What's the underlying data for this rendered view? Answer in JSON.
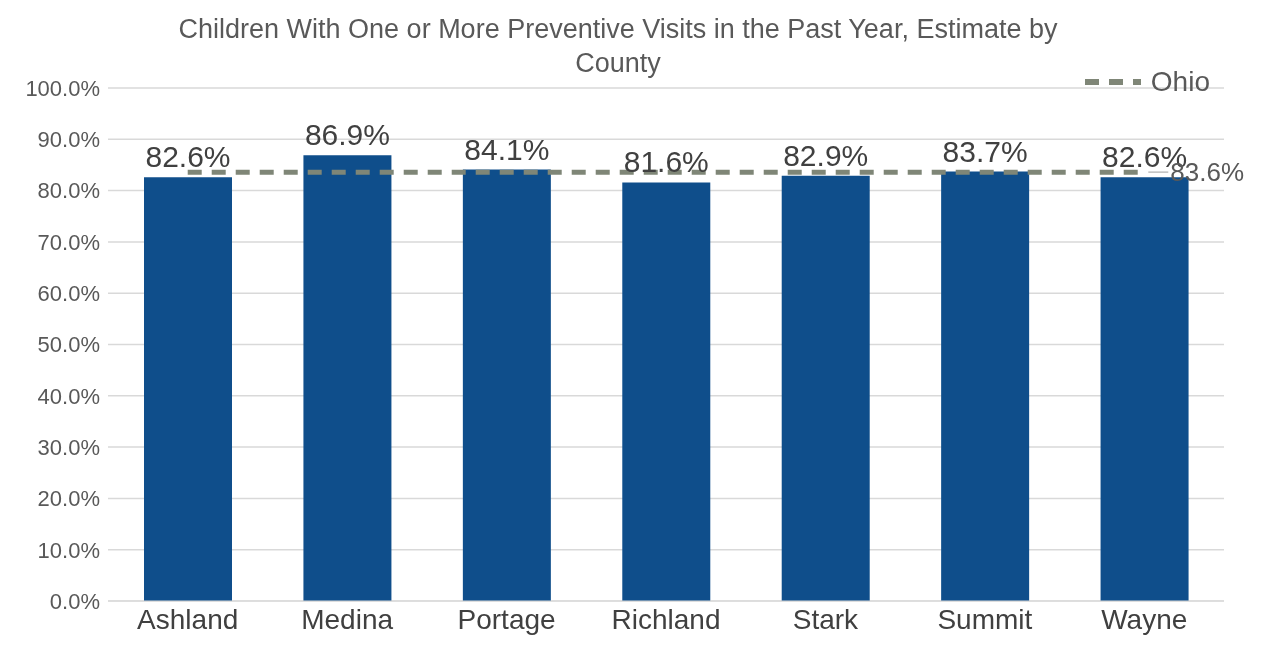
{
  "chart_data": {
    "type": "bar",
    "title": "Children With One or More Preventive Visits in the Past Year, Estimate by County",
    "categories": [
      "Ashland",
      "Medina",
      "Portage",
      "Richland",
      "Stark",
      "Summit",
      "Wayne"
    ],
    "series": [
      {
        "color": "#0f4e8b",
        "values": [
          82.6,
          86.9,
          84.1,
          81.6,
          82.9,
          83.7,
          82.6
        ],
        "value_labels": [
          "82.6%",
          "86.9%",
          "84.1%",
          "81.6%",
          "82.9%",
          "83.7%",
          "82.6%"
        ]
      },
      {
        "type": "line",
        "name": "Ohio",
        "color": "#7f8677",
        "line_style": "dashed",
        "values": [
          83.6,
          83.6,
          83.6,
          83.6,
          83.6,
          83.6,
          83.6
        ],
        "value_labels": [
          null,
          null,
          null,
          null,
          null,
          null,
          "83.6%"
        ]
      }
    ],
    "ylim": [
      0,
      100
    ],
    "yticks": [
      {
        "value": 0,
        "label": "0.0%"
      },
      {
        "value": 10,
        "label": "10.0%"
      },
      {
        "value": 20,
        "label": "20.0%"
      },
      {
        "value": 30,
        "label": "30.0%"
      },
      {
        "value": 40,
        "label": "40.0%"
      },
      {
        "value": 50,
        "label": "50.0%"
      },
      {
        "value": 60,
        "label": "60.0%"
      },
      {
        "value": 70,
        "label": "70.0%"
      },
      {
        "value": 80,
        "label": "80.0%"
      },
      {
        "value": 90,
        "label": "90.0%"
      },
      {
        "value": 100,
        "label": "100.0%"
      }
    ],
    "grid": "y",
    "legend": "top right",
    "marker": "none"
  }
}
